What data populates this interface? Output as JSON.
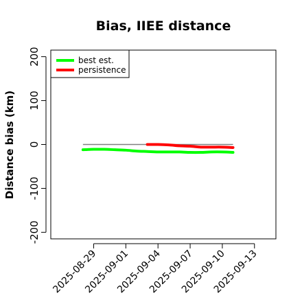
{
  "chart_data": {
    "type": "line",
    "title": "Bias, IIEE distance",
    "xlabel": "",
    "ylabel": "Distance bias (km)",
    "xlim": [
      "2025-08-25",
      "2025-09-15"
    ],
    "ylim": [
      -215,
      215
    ],
    "yticks": [
      -200,
      -100,
      0,
      100,
      200
    ],
    "xticks": [
      "2025-08-29",
      "2025-09-01",
      "2025-09-04",
      "2025-09-07",
      "2025-09-10",
      "2025-09-13"
    ],
    "legend_position": "top-left",
    "grid": false,
    "reference_line": {
      "y": 0,
      "x_from": "2025-08-28",
      "x_to": "2025-09-11",
      "color": "#808080"
    },
    "series": [
      {
        "name": "best est.",
        "color": "#00ff00",
        "x": [
          "2025-08-28",
          "2025-08-29",
          "2025-08-30",
          "2025-08-31",
          "2025-09-01",
          "2025-09-02",
          "2025-09-03",
          "2025-09-04",
          "2025-09-05",
          "2025-09-06",
          "2025-09-07",
          "2025-09-08",
          "2025-09-09",
          "2025-09-10",
          "2025-09-11"
        ],
        "values": [
          -12,
          -11,
          -11,
          -12,
          -13,
          -15,
          -16,
          -17,
          -17,
          -17,
          -18,
          -18,
          -17,
          -17,
          -18
        ]
      },
      {
        "name": "persistence",
        "color": "#ff0000",
        "x": [
          "2025-09-03",
          "2025-09-04",
          "2025-09-05",
          "2025-09-06",
          "2025-09-07",
          "2025-09-08",
          "2025-09-09",
          "2025-09-10",
          "2025-09-11"
        ],
        "values": [
          0,
          0,
          -1,
          -3,
          -4,
          -6,
          -6,
          -6,
          -7
        ]
      }
    ]
  }
}
